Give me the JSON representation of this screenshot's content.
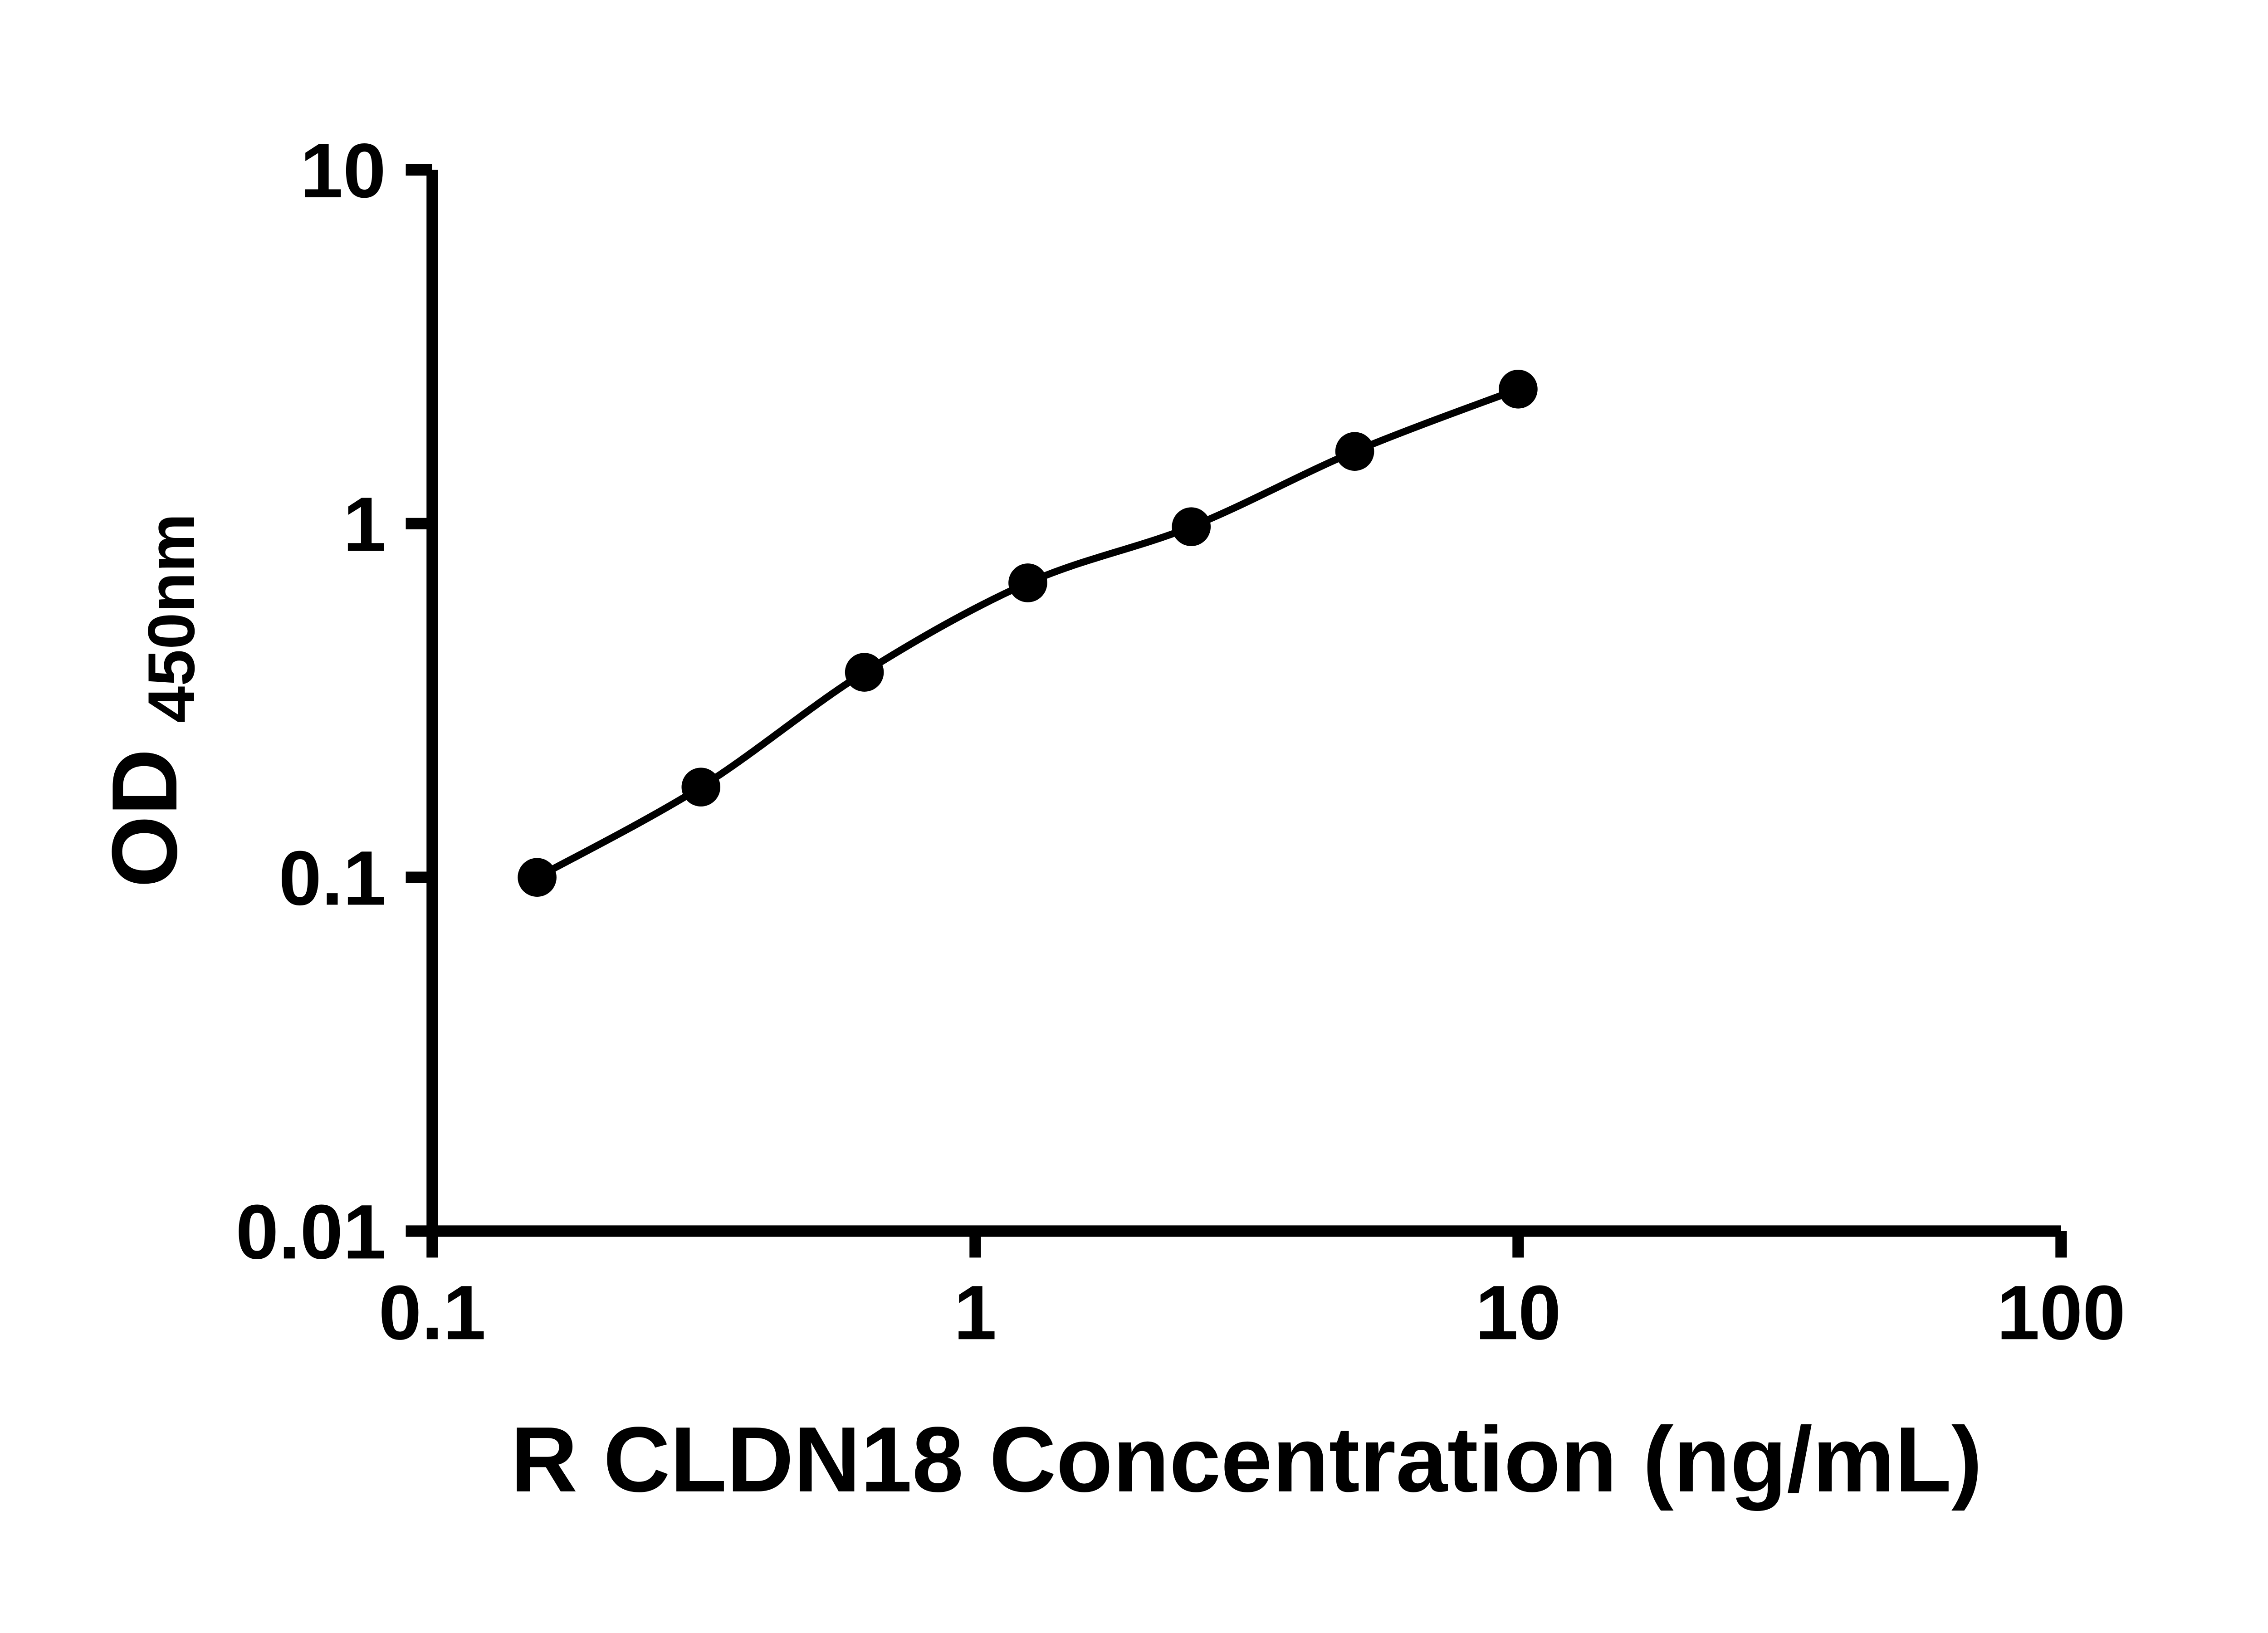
{
  "chart_data": {
    "type": "scatter",
    "xlabel": "R CLDN18 Concentration (ng/mL)",
    "ylabel_main": "OD",
    "ylabel_sub": "450nm",
    "x_scale": "log",
    "y_scale": "log",
    "xlim": [
      0.1,
      100
    ],
    "ylim": [
      0.01,
      10
    ],
    "grid": false,
    "legend": false,
    "color": "#000000",
    "marker": "filled-circle",
    "line_style": "smooth-fit-curve",
    "x_ticks": [
      {
        "value": 0.1,
        "label": "0.1"
      },
      {
        "value": 1,
        "label": "1"
      },
      {
        "value": 10,
        "label": "10"
      },
      {
        "value": 100,
        "label": "100"
      }
    ],
    "y_ticks": [
      {
        "value": 0.01,
        "label": "0.01"
      },
      {
        "value": 0.1,
        "label": "0.1"
      },
      {
        "value": 1,
        "label": "1"
      },
      {
        "value": 10,
        "label": "10"
      }
    ],
    "series": [
      {
        "points": [
          {
            "x": 0.156,
            "y": 0.1
          },
          {
            "x": 0.3125,
            "y": 0.18
          },
          {
            "x": 0.625,
            "y": 0.38
          },
          {
            "x": 1.25,
            "y": 0.68
          },
          {
            "x": 2.5,
            "y": 0.98
          },
          {
            "x": 5,
            "y": 1.6
          },
          {
            "x": 10,
            "y": 2.4
          }
        ]
      }
    ]
  }
}
